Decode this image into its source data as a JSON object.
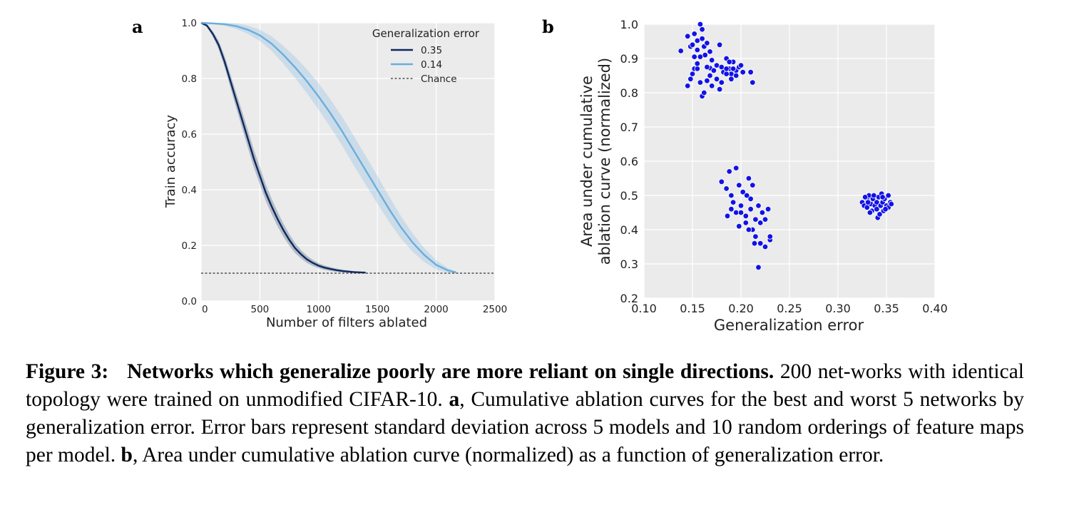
{
  "figure": {
    "panel_a_letter": "a",
    "panel_b_letter": "b",
    "colors": {
      "dark_series": "#0d2a5e",
      "light_series": "#6aaede",
      "scatter": "#1212e6",
      "plot_bg": "#ebebeb",
      "grid": "#ffffff"
    }
  },
  "chart_data": [
    {
      "type": "line",
      "xlabel": "Number of filters ablated",
      "ylabel": "Train accuracy",
      "xlim": [
        0,
        2500
      ],
      "ylim": [
        0,
        1.0
      ],
      "xticks": [
        "0",
        "500",
        "1000",
        "1500",
        "2000",
        "2500"
      ],
      "yticks": [
        "0.0",
        "0.2",
        "0.4",
        "0.6",
        "0.8",
        "1.0"
      ],
      "grid": true,
      "legend": {
        "title": "Generalization error",
        "placement": "top-right"
      },
      "series": [
        {
          "name": "0.35",
          "color": "#0d2a5e",
          "x": [
            0,
            50,
            100,
            150,
            200,
            250,
            300,
            350,
            400,
            450,
            500,
            550,
            600,
            650,
            700,
            750,
            800,
            850,
            900,
            950,
            1000,
            1050,
            1100,
            1150,
            1200,
            1250,
            1300,
            1350,
            1400
          ],
          "y": [
            1.0,
            0.99,
            0.96,
            0.92,
            0.86,
            0.79,
            0.72,
            0.65,
            0.58,
            0.51,
            0.45,
            0.39,
            0.34,
            0.295,
            0.255,
            0.22,
            0.19,
            0.168,
            0.15,
            0.137,
            0.127,
            0.12,
            0.115,
            0.111,
            0.108,
            0.106,
            0.104,
            0.103,
            0.102
          ],
          "std": [
            0.0,
            0.005,
            0.01,
            0.015,
            0.02,
            0.024,
            0.027,
            0.03,
            0.032,
            0.032,
            0.031,
            0.03,
            0.028,
            0.026,
            0.024,
            0.021,
            0.018,
            0.015,
            0.013,
            0.011,
            0.009,
            0.008,
            0.007,
            0.006,
            0.005,
            0.004,
            0.003,
            0.002,
            0.001
          ]
        },
        {
          "name": "0.14",
          "color": "#6aaede",
          "x": [
            0,
            100,
            200,
            300,
            400,
            500,
            600,
            700,
            800,
            900,
            1000,
            1100,
            1200,
            1300,
            1400,
            1500,
            1600,
            1700,
            1800,
            1900,
            2000,
            2100,
            2170
          ],
          "y": [
            1.0,
            0.998,
            0.995,
            0.988,
            0.975,
            0.955,
            0.925,
            0.885,
            0.84,
            0.79,
            0.735,
            0.675,
            0.61,
            0.54,
            0.47,
            0.4,
            0.33,
            0.265,
            0.21,
            0.165,
            0.13,
            0.11,
            0.103
          ],
          "std": [
            0.0,
            0.003,
            0.006,
            0.01,
            0.015,
            0.02,
            0.026,
            0.032,
            0.038,
            0.043,
            0.047,
            0.05,
            0.052,
            0.053,
            0.052,
            0.05,
            0.046,
            0.04,
            0.033,
            0.025,
            0.017,
            0.008,
            0.003
          ]
        }
      ],
      "reference_lines": [
        {
          "name": "Chance",
          "y": 0.1,
          "style": "dashed"
        }
      ]
    },
    {
      "type": "scatter",
      "xlabel": "Generalization error",
      "ylabel": "Area under cumulative ablation curve (normalized)",
      "ylabel_lines": [
        "Area under cumulative",
        "ablation curve (normalized)"
      ],
      "xlim": [
        0.1,
        0.4
      ],
      "ylim": [
        0.2,
        1.0
      ],
      "xticks": [
        "0.10",
        "0.15",
        "0.20",
        "0.25",
        "0.30",
        "0.35",
        "0.40"
      ],
      "yticks": [
        "0.2",
        "0.3",
        "0.4",
        "0.5",
        "0.6",
        "0.7",
        "0.8",
        "0.9",
        "1.0"
      ],
      "grid": true,
      "points": [
        [
          0.138,
          0.922
        ],
        [
          0.145,
          0.965
        ],
        [
          0.148,
          0.935
        ],
        [
          0.15,
          0.94
        ],
        [
          0.152,
          0.905
        ],
        [
          0.152,
          0.972
        ],
        [
          0.155,
          0.952
        ],
        [
          0.155,
          0.925
        ],
        [
          0.158,
          1.0
        ],
        [
          0.16,
          0.985
        ],
        [
          0.16,
          0.958
        ],
        [
          0.162,
          0.935
        ],
        [
          0.163,
          0.91
        ],
        [
          0.165,
          0.945
        ],
        [
          0.168,
          0.92
        ],
        [
          0.17,
          0.895
        ],
        [
          0.168,
          0.872
        ],
        [
          0.172,
          0.865
        ],
        [
          0.175,
          0.88
        ],
        [
          0.178,
          0.94
        ],
        [
          0.18,
          0.875
        ],
        [
          0.182,
          0.86
        ],
        [
          0.185,
          0.9
        ],
        [
          0.188,
          0.87
        ],
        [
          0.19,
          0.855
        ],
        [
          0.192,
          0.89
        ],
        [
          0.195,
          0.865
        ],
        [
          0.198,
          0.875
        ],
        [
          0.2,
          0.88
        ],
        [
          0.202,
          0.86
        ],
        [
          0.145,
          0.82
        ],
        [
          0.148,
          0.84
        ],
        [
          0.152,
          0.87
        ],
        [
          0.155,
          0.87
        ],
        [
          0.158,
          0.83
        ],
        [
          0.16,
          0.79
        ],
        [
          0.162,
          0.8
        ],
        [
          0.165,
          0.835
        ],
        [
          0.168,
          0.85
        ],
        [
          0.17,
          0.82
        ],
        [
          0.175,
          0.84
        ],
        [
          0.178,
          0.81
        ],
        [
          0.18,
          0.83
        ],
        [
          0.185,
          0.855
        ],
        [
          0.19,
          0.84
        ],
        [
          0.195,
          0.85
        ],
        [
          0.188,
          0.89
        ],
        [
          0.155,
          0.885
        ],
        [
          0.158,
          0.905
        ],
        [
          0.192,
          0.87
        ],
        [
          0.21,
          0.86
        ],
        [
          0.212,
          0.83
        ],
        [
          0.15,
          0.855
        ],
        [
          0.165,
          0.875
        ],
        [
          0.185,
          0.87
        ],
        [
          0.18,
          0.54
        ],
        [
          0.185,
          0.52
        ],
        [
          0.188,
          0.57
        ],
        [
          0.19,
          0.5
        ],
        [
          0.192,
          0.48
        ],
        [
          0.195,
          0.58
        ],
        [
          0.195,
          0.45
        ],
        [
          0.198,
          0.53
        ],
        [
          0.2,
          0.47
        ],
        [
          0.202,
          0.51
        ],
        [
          0.205,
          0.44
        ],
        [
          0.205,
          0.42
        ],
        [
          0.208,
          0.55
        ],
        [
          0.21,
          0.49
        ],
        [
          0.21,
          0.46
        ],
        [
          0.212,
          0.53
        ],
        [
          0.212,
          0.4
        ],
        [
          0.215,
          0.43
        ],
        [
          0.215,
          0.38
        ],
        [
          0.218,
          0.47
        ],
        [
          0.218,
          0.29
        ],
        [
          0.22,
          0.36
        ],
        [
          0.222,
          0.45
        ],
        [
          0.225,
          0.43
        ],
        [
          0.225,
          0.35
        ],
        [
          0.228,
          0.46
        ],
        [
          0.23,
          0.37
        ],
        [
          0.23,
          0.38
        ],
        [
          0.186,
          0.44
        ],
        [
          0.198,
          0.41
        ],
        [
          0.208,
          0.4
        ],
        [
          0.214,
          0.36
        ],
        [
          0.2,
          0.45
        ],
        [
          0.22,
          0.42
        ],
        [
          0.19,
          0.46
        ],
        [
          0.206,
          0.5
        ],
        [
          0.325,
          0.48
        ],
        [
          0.327,
          0.47
        ],
        [
          0.33,
          0.49
        ],
        [
          0.33,
          0.465
        ],
        [
          0.332,
          0.5
        ],
        [
          0.334,
          0.475
        ],
        [
          0.335,
          0.455
        ],
        [
          0.336,
          0.49
        ],
        [
          0.338,
          0.47
        ],
        [
          0.34,
          0.48
        ],
        [
          0.34,
          0.46
        ],
        [
          0.341,
          0.435
        ],
        [
          0.342,
          0.495
        ],
        [
          0.344,
          0.47
        ],
        [
          0.345,
          0.505
        ],
        [
          0.346,
          0.48
        ],
        [
          0.347,
          0.455
        ],
        [
          0.348,
          0.49
        ],
        [
          0.35,
          0.47
        ],
        [
          0.352,
          0.5
        ],
        [
          0.352,
          0.465
        ],
        [
          0.354,
          0.48
        ],
        [
          0.328,
          0.495
        ],
        [
          0.333,
          0.45
        ],
        [
          0.343,
          0.445
        ],
        [
          0.349,
          0.46
        ],
        [
          0.337,
          0.5
        ],
        [
          0.331,
          0.48
        ],
        [
          0.346,
          0.495
        ],
        [
          0.355,
          0.475
        ]
      ]
    }
  ],
  "caption": {
    "label": "Figure 3:",
    "title": "Networks which generalize poorly are more reliant on single directions.",
    "part1": " 200 net-works with identical topology were trained on unmodified CIFAR-10. ",
    "a_ref": "a",
    "part2": ", Cumulative ablation curves for the best and worst 5 networks by generalization error. Error bars represent standard deviation across 5 models and 10 random orderings of feature maps per model. ",
    "b_ref": "b",
    "part3": ", Area under cumulative ablation curve (normalized) as a function of generalization error."
  }
}
